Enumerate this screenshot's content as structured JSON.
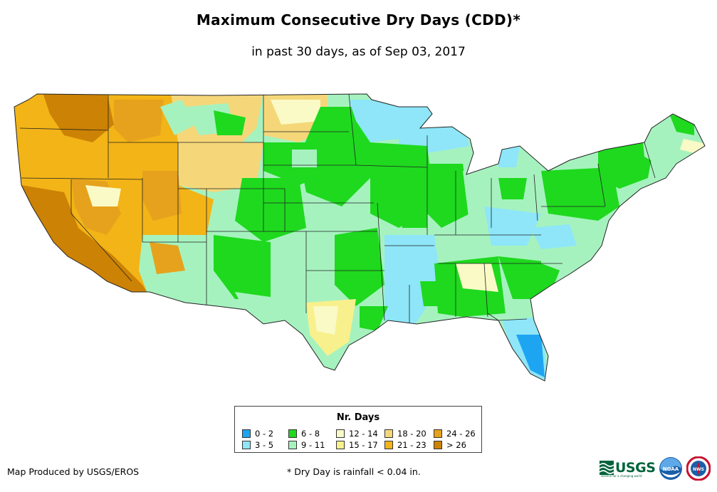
{
  "title": "Maximum Consecutive Dry Days (CDD)*",
  "subtitle": "in past 30 days, as of Sep 03, 2017",
  "legend": {
    "title": "Nr. Days",
    "items": [
      {
        "label": "0 - 2",
        "color": "#1ea5f2"
      },
      {
        "label": "3 - 5",
        "color": "#8ee6f8"
      },
      {
        "label": "6 - 8",
        "color": "#1ed91e"
      },
      {
        "label": "9 - 11",
        "color": "#a6f2bf"
      },
      {
        "label": "12 - 14",
        "color": "#fafac6"
      },
      {
        "label": "15 - 17",
        "color": "#f8f08c"
      },
      {
        "label": "18 - 20",
        "color": "#f5d77a"
      },
      {
        "label": "21 - 23",
        "color": "#f2b417"
      },
      {
        "label": "24 - 26",
        "color": "#e6a21c"
      },
      {
        "label": "> 26",
        "color": "#cc8204"
      }
    ]
  },
  "footer": {
    "credit": "Map Produced by USGS/EROS",
    "footnote": "* Dry Day is rainfall < 0.04 in."
  },
  "logos": {
    "usgs_text": "USGS",
    "usgs_tagline": "science for a changing world",
    "noaa_text": "NOAA",
    "nws_text": "NWS"
  }
}
